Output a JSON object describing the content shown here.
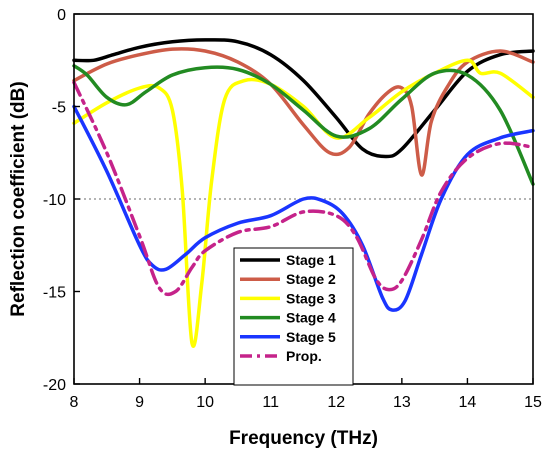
{
  "chart_data": {
    "type": "line",
    "title": "",
    "xlabel": "Frequency (THz)",
    "ylabel": "Reflection coefficient (dB)",
    "xlim": [
      8,
      15
    ],
    "ylim": [
      -20,
      0
    ],
    "xticks": [
      8,
      9,
      10,
      11,
      12,
      13,
      14,
      15
    ],
    "yticks": [
      0,
      -5,
      -10,
      -15,
      -20
    ],
    "reference_line": {
      "y": -10,
      "style": "dotted",
      "color": "#888888"
    },
    "legend_position": "bottom-center",
    "series": [
      {
        "name": "Stage 1",
        "color": "#000000",
        "dash": "solid",
        "points": [
          [
            8,
            -2.5
          ],
          [
            8.3,
            -2.5
          ],
          [
            8.6,
            -2.2
          ],
          [
            9,
            -1.8
          ],
          [
            9.5,
            -1.5
          ],
          [
            10,
            -1.4
          ],
          [
            10.5,
            -1.5
          ],
          [
            11,
            -2.2
          ],
          [
            11.5,
            -3.6
          ],
          [
            12,
            -5.6
          ],
          [
            12.4,
            -7.3
          ],
          [
            12.75,
            -7.7
          ],
          [
            13,
            -7.3
          ],
          [
            13.5,
            -5.2
          ],
          [
            14,
            -3.1
          ],
          [
            14.5,
            -2.2
          ],
          [
            15,
            -2.0
          ]
        ]
      },
      {
        "name": "Stage 2",
        "color": "#cd5c48",
        "dash": "solid",
        "points": [
          [
            8,
            -3.6
          ],
          [
            8.5,
            -2.7
          ],
          [
            9,
            -2.2
          ],
          [
            9.5,
            -1.9
          ],
          [
            10,
            -2.0
          ],
          [
            10.5,
            -2.6
          ],
          [
            11,
            -3.8
          ],
          [
            11.5,
            -6.0
          ],
          [
            11.9,
            -7.5
          ],
          [
            12.2,
            -7.2
          ],
          [
            12.5,
            -5.4
          ],
          [
            12.8,
            -4.2
          ],
          [
            13.0,
            -4.0
          ],
          [
            13.15,
            -5.0
          ],
          [
            13.3,
            -8.7
          ],
          [
            13.45,
            -5.8
          ],
          [
            13.7,
            -3.9
          ],
          [
            14,
            -2.6
          ],
          [
            14.5,
            -2.0
          ],
          [
            15,
            -2.6
          ]
        ]
      },
      {
        "name": "Stage 3",
        "color": "#ffff00",
        "dash": "solid",
        "points": [
          [
            8,
            -5.9
          ],
          [
            8.5,
            -4.8
          ],
          [
            9,
            -4.0
          ],
          [
            9.3,
            -4.0
          ],
          [
            9.5,
            -5.2
          ],
          [
            9.65,
            -9.5
          ],
          [
            9.8,
            -17.8
          ],
          [
            9.95,
            -14.5
          ],
          [
            10.1,
            -9.0
          ],
          [
            10.3,
            -4.6
          ],
          [
            10.6,
            -3.6
          ],
          [
            11,
            -3.8
          ],
          [
            11.5,
            -5.0
          ],
          [
            12,
            -6.7
          ],
          [
            12.5,
            -5.6
          ],
          [
            13,
            -4.2
          ],
          [
            13.5,
            -3.2
          ],
          [
            14,
            -2.5
          ],
          [
            14.2,
            -3.2
          ],
          [
            14.5,
            -3.2
          ],
          [
            15,
            -4.5
          ]
        ]
      },
      {
        "name": "Stage 4",
        "color": "#228b22",
        "dash": "solid",
        "points": [
          [
            8,
            -2.8
          ],
          [
            8.2,
            -3.3
          ],
          [
            8.5,
            -4.5
          ],
          [
            8.8,
            -4.9
          ],
          [
            9.1,
            -4.2
          ],
          [
            9.5,
            -3.3
          ],
          [
            10,
            -2.9
          ],
          [
            10.5,
            -3.0
          ],
          [
            11,
            -3.8
          ],
          [
            11.5,
            -5.2
          ],
          [
            12,
            -6.6
          ],
          [
            12.5,
            -6.2
          ],
          [
            13,
            -4.6
          ],
          [
            13.5,
            -3.2
          ],
          [
            14,
            -3.3
          ],
          [
            14.5,
            -5.2
          ],
          [
            15,
            -9.2
          ]
        ]
      },
      {
        "name": "Stage 5",
        "color": "#1a35ff",
        "dash": "solid",
        "points": [
          [
            8,
            -5.0
          ],
          [
            8.5,
            -8.5
          ],
          [
            9,
            -12.5
          ],
          [
            9.2,
            -13.6
          ],
          [
            9.4,
            -13.8
          ],
          [
            9.7,
            -13.0
          ],
          [
            10,
            -12.1
          ],
          [
            10.5,
            -11.3
          ],
          [
            11,
            -10.9
          ],
          [
            11.5,
            -10.0
          ],
          [
            11.8,
            -10.1
          ],
          [
            12.1,
            -10.8
          ],
          [
            12.4,
            -12.5
          ],
          [
            12.7,
            -15.3
          ],
          [
            12.85,
            -16.0
          ],
          [
            13.05,
            -15.5
          ],
          [
            13.3,
            -13.0
          ],
          [
            13.6,
            -10.0
          ],
          [
            14,
            -7.6
          ],
          [
            14.5,
            -6.7
          ],
          [
            15,
            -6.3
          ]
        ]
      },
      {
        "name": "Prop.",
        "color": "#c5238a",
        "dash": "dashdot",
        "points": [
          [
            8,
            -3.7
          ],
          [
            8.5,
            -7.5
          ],
          [
            9,
            -12.0
          ],
          [
            9.3,
            -14.8
          ],
          [
            9.55,
            -15.0
          ],
          [
            9.8,
            -13.7
          ],
          [
            10,
            -12.8
          ],
          [
            10.5,
            -11.8
          ],
          [
            11,
            -11.5
          ],
          [
            11.5,
            -10.7
          ],
          [
            12,
            -10.9
          ],
          [
            12.3,
            -12.0
          ],
          [
            12.6,
            -14.3
          ],
          [
            12.8,
            -14.9
          ],
          [
            13,
            -14.4
          ],
          [
            13.3,
            -12.2
          ],
          [
            13.6,
            -9.6
          ],
          [
            14,
            -7.8
          ],
          [
            14.5,
            -7.0
          ],
          [
            15,
            -7.2
          ]
        ]
      }
    ]
  }
}
